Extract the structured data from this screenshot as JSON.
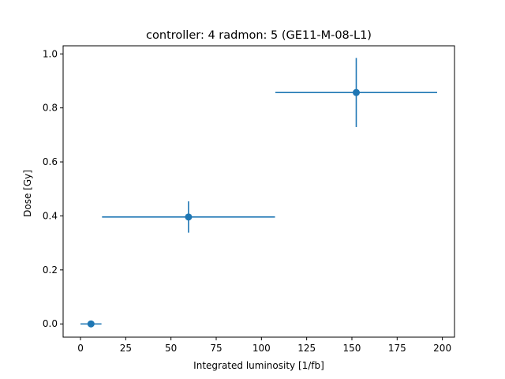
{
  "chart_data": {
    "type": "scatter",
    "title": "controller: 4 radmon: 5 (GE11-M-08-L1)",
    "xlabel": "Integrated luminosity [1/fb]",
    "ylabel": "Dose [Gy]",
    "xlim": [
      -9.6,
      206.7
    ],
    "ylim": [
      -0.049,
      1.03
    ],
    "xticks": [
      0,
      25,
      50,
      75,
      100,
      125,
      150,
      175,
      200
    ],
    "yticks": [
      0.0,
      0.2,
      0.4,
      0.6,
      0.8,
      1.0
    ],
    "xtick_labels": [
      "0",
      "25",
      "50",
      "75",
      "100",
      "125",
      "150",
      "175",
      "200"
    ],
    "ytick_labels": [
      "0.0",
      "0.2",
      "0.4",
      "0.6",
      "0.8",
      "1.0"
    ],
    "grid": false,
    "color": "#1f77b4",
    "points": [
      {
        "x": 5.8,
        "y": 0.0,
        "xerr": [
          5.8,
          5.8
        ],
        "yerr": [
          0.0,
          0.0
        ]
      },
      {
        "x": 59.7,
        "y": 0.396,
        "xerr": [
          47.8,
          47.8
        ],
        "yerr": [
          0.058,
          0.058
        ]
      },
      {
        "x": 152.4,
        "y": 0.857,
        "xerr": [
          44.7,
          44.7
        ],
        "yerr": [
          0.128,
          0.128
        ]
      }
    ]
  }
}
